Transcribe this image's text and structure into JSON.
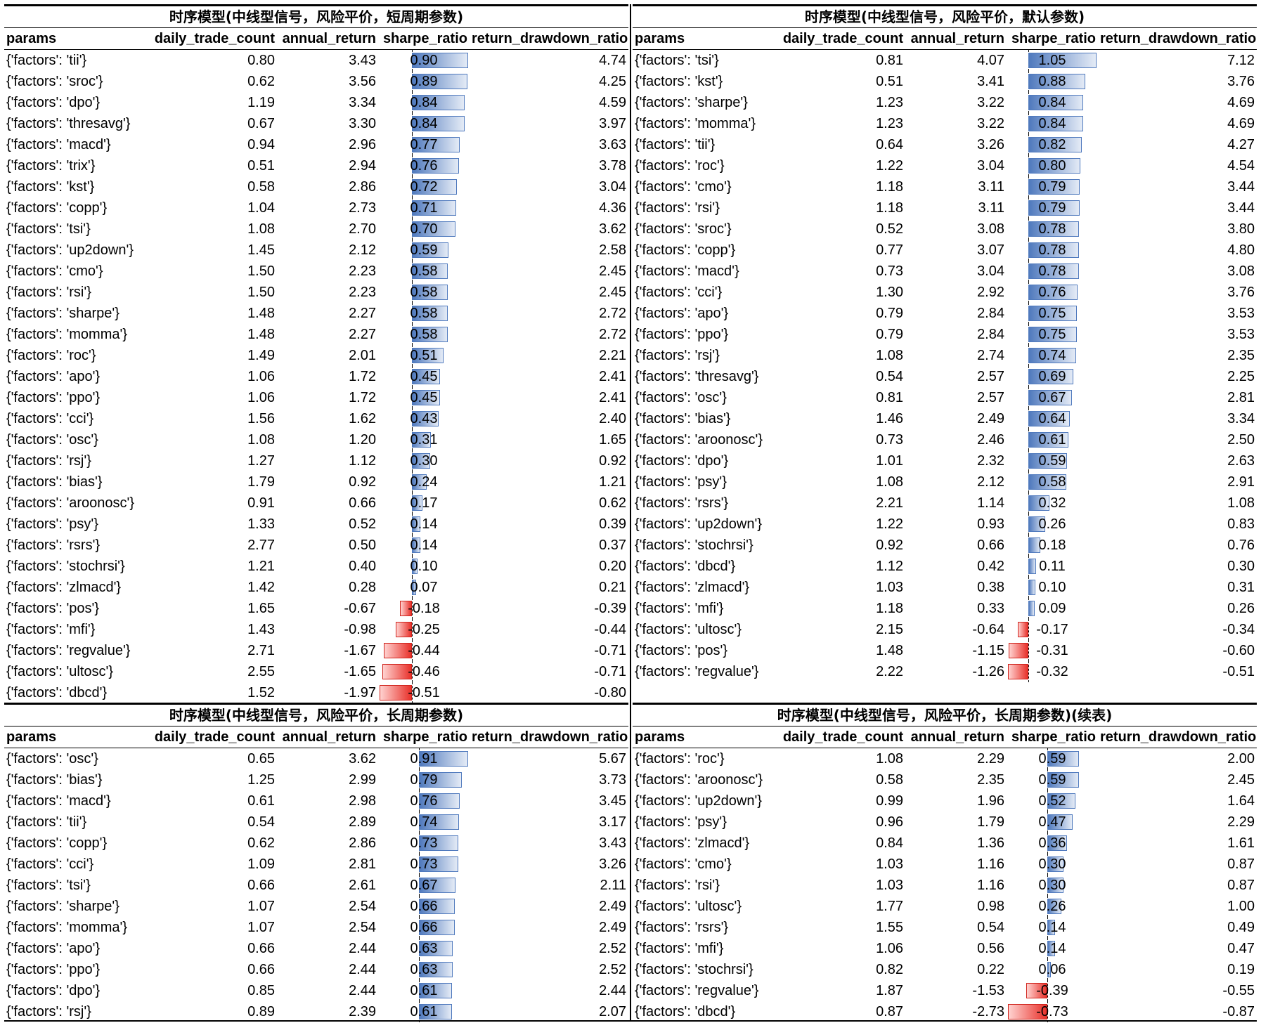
{
  "columns": [
    "params",
    "daily_trade_count",
    "annual_return",
    "sharpe_ratio",
    "return_drawdown_ratio"
  ],
  "chart_data": [
    {
      "type": "table",
      "title": "时序模型(中线型信号，风险平价，短周期参数)",
      "sharpe_range": [
        -0.51,
        0.9
      ],
      "rows": [
        [
          "{'factors': 'tii'}",
          "0.80",
          "3.43",
          "0.90",
          "4.74"
        ],
        [
          "{'factors': 'sroc'}",
          "0.62",
          "3.56",
          "0.89",
          "4.25"
        ],
        [
          "{'factors': 'dpo'}",
          "1.19",
          "3.34",
          "0.84",
          "4.59"
        ],
        [
          "{'factors': 'thresavg'}",
          "0.67",
          "3.30",
          "0.84",
          "3.97"
        ],
        [
          "{'factors': 'macd'}",
          "0.94",
          "2.96",
          "0.77",
          "3.63"
        ],
        [
          "{'factors': 'trix'}",
          "0.51",
          "2.94",
          "0.76",
          "3.78"
        ],
        [
          "{'factors': 'kst'}",
          "0.58",
          "2.86",
          "0.72",
          "3.04"
        ],
        [
          "{'factors': 'copp'}",
          "1.04",
          "2.73",
          "0.71",
          "4.36"
        ],
        [
          "{'factors': 'tsi'}",
          "1.08",
          "2.70",
          "0.70",
          "3.62"
        ],
        [
          "{'factors': 'up2down'}",
          "1.45",
          "2.12",
          "0.59",
          "2.58"
        ],
        [
          "{'factors': 'cmo'}",
          "1.50",
          "2.23",
          "0.58",
          "2.45"
        ],
        [
          "{'factors': 'rsi'}",
          "1.50",
          "2.23",
          "0.58",
          "2.45"
        ],
        [
          "{'factors': 'sharpe'}",
          "1.48",
          "2.27",
          "0.58",
          "2.72"
        ],
        [
          "{'factors': 'momma'}",
          "1.48",
          "2.27",
          "0.58",
          "2.72"
        ],
        [
          "{'factors': 'roc'}",
          "1.49",
          "2.01",
          "0.51",
          "2.21"
        ],
        [
          "{'factors': 'apo'}",
          "1.06",
          "1.72",
          "0.45",
          "2.41"
        ],
        [
          "{'factors': 'ppo'}",
          "1.06",
          "1.72",
          "0.45",
          "2.41"
        ],
        [
          "{'factors': 'cci'}",
          "1.56",
          "1.62",
          "0.43",
          "2.40"
        ],
        [
          "{'factors': 'osc'}",
          "1.08",
          "1.20",
          "0.31",
          "1.65"
        ],
        [
          "{'factors': 'rsj'}",
          "1.27",
          "1.12",
          "0.30",
          "0.92"
        ],
        [
          "{'factors': 'bias'}",
          "1.79",
          "0.92",
          "0.24",
          "1.21"
        ],
        [
          "{'factors': 'aroonosc'}",
          "0.91",
          "0.66",
          "0.17",
          "0.62"
        ],
        [
          "{'factors': 'psy'}",
          "1.33",
          "0.52",
          "0.14",
          "0.39"
        ],
        [
          "{'factors': 'rsrs'}",
          "2.77",
          "0.50",
          "0.14",
          "0.37"
        ],
        [
          "{'factors': 'stochrsi'}",
          "1.21",
          "0.40",
          "0.10",
          "0.20"
        ],
        [
          "{'factors': 'zlmacd'}",
          "1.42",
          "0.28",
          "0.07",
          "0.21"
        ],
        [
          "{'factors': 'pos'}",
          "1.65",
          "-0.67",
          "-0.18",
          "-0.39"
        ],
        [
          "{'factors': 'mfi'}",
          "1.43",
          "-0.98",
          "-0.25",
          "-0.44"
        ],
        [
          "{'factors': 'regvalue'}",
          "2.71",
          "-1.67",
          "-0.44",
          "-0.71"
        ],
        [
          "{'factors': 'ultosc'}",
          "2.55",
          "-1.65",
          "-0.46",
          "-0.71"
        ],
        [
          "{'factors': 'dbcd'}",
          "1.52",
          "-1.97",
          "-0.51",
          "-0.80"
        ]
      ]
    },
    {
      "type": "table",
      "title": "时序模型(中线型信号，风险平价，默认参数)",
      "sharpe_range": [
        -0.32,
        1.05
      ],
      "rows": [
        [
          "{'factors': 'tsi'}",
          "0.81",
          "4.07",
          "1.05",
          "7.12"
        ],
        [
          "{'factors': 'kst'}",
          "0.51",
          "3.41",
          "0.88",
          "3.76"
        ],
        [
          "{'factors': 'sharpe'}",
          "1.23",
          "3.22",
          "0.84",
          "4.69"
        ],
        [
          "{'factors': 'momma'}",
          "1.23",
          "3.22",
          "0.84",
          "4.69"
        ],
        [
          "{'factors': 'tii'}",
          "0.64",
          "3.26",
          "0.82",
          "4.27"
        ],
        [
          "{'factors': 'roc'}",
          "1.22",
          "3.04",
          "0.80",
          "4.54"
        ],
        [
          "{'factors': 'cmo'}",
          "1.18",
          "3.11",
          "0.79",
          "3.44"
        ],
        [
          "{'factors': 'rsi'}",
          "1.18",
          "3.11",
          "0.79",
          "3.44"
        ],
        [
          "{'factors': 'sroc'}",
          "0.52",
          "3.08",
          "0.78",
          "3.80"
        ],
        [
          "{'factors': 'copp'}",
          "0.77",
          "3.07",
          "0.78",
          "4.80"
        ],
        [
          "{'factors': 'macd'}",
          "0.73",
          "3.04",
          "0.78",
          "3.08"
        ],
        [
          "{'factors': 'cci'}",
          "1.30",
          "2.92",
          "0.76",
          "3.76"
        ],
        [
          "{'factors': 'apo'}",
          "0.79",
          "2.84",
          "0.75",
          "3.53"
        ],
        [
          "{'factors': 'ppo'}",
          "0.79",
          "2.84",
          "0.75",
          "3.53"
        ],
        [
          "{'factors': 'rsj'}",
          "1.08",
          "2.74",
          "0.74",
          "2.35"
        ],
        [
          "{'factors': 'thresavg'}",
          "0.54",
          "2.57",
          "0.69",
          "2.25"
        ],
        [
          "{'factors': 'osc'}",
          "0.81",
          "2.57",
          "0.67",
          "2.81"
        ],
        [
          "{'factors': 'bias'}",
          "1.46",
          "2.49",
          "0.64",
          "3.34"
        ],
        [
          "{'factors': 'aroonosc'}",
          "0.73",
          "2.46",
          "0.61",
          "2.50"
        ],
        [
          "{'factors': 'dpo'}",
          "1.01",
          "2.32",
          "0.59",
          "2.63"
        ],
        [
          "{'factors': 'psy'}",
          "1.08",
          "2.12",
          "0.58",
          "2.91"
        ],
        [
          "{'factors': 'rsrs'}",
          "2.21",
          "1.14",
          "0.32",
          "1.08"
        ],
        [
          "{'factors': 'up2down'}",
          "1.22",
          "0.93",
          "0.26",
          "0.83"
        ],
        [
          "{'factors': 'stochrsi'}",
          "0.92",
          "0.66",
          "0.18",
          "0.76"
        ],
        [
          "{'factors': 'dbcd'}",
          "1.12",
          "0.42",
          "0.11",
          "0.30"
        ],
        [
          "{'factors': 'zlmacd'}",
          "1.03",
          "0.38",
          "0.10",
          "0.31"
        ],
        [
          "{'factors': 'mfi'}",
          "1.18",
          "0.33",
          "0.09",
          "0.26"
        ],
        [
          "{'factors': 'ultosc'}",
          "2.15",
          "-0.64",
          "-0.17",
          "-0.34"
        ],
        [
          "{'factors': 'pos'}",
          "1.48",
          "-1.15",
          "-0.31",
          "-0.60"
        ],
        [
          "{'factors': 'regvalue'}",
          "2.22",
          "-1.26",
          "-0.32",
          "-0.51"
        ]
      ]
    },
    {
      "type": "table",
      "title": "时序模型(中线型信号，风险平价，长周期参数)",
      "sharpe_range": [
        -0.73,
        0.91
      ],
      "rows": [
        [
          "{'factors': 'osc'}",
          "0.65",
          "3.62",
          "0.91",
          "5.67"
        ],
        [
          "{'factors': 'bias'}",
          "1.25",
          "2.99",
          "0.79",
          "3.73"
        ],
        [
          "{'factors': 'macd'}",
          "0.61",
          "2.98",
          "0.76",
          "3.45"
        ],
        [
          "{'factors': 'tii'}",
          "0.54",
          "2.89",
          "0.74",
          "3.17"
        ],
        [
          "{'factors': 'copp'}",
          "0.62",
          "2.86",
          "0.73",
          "3.43"
        ],
        [
          "{'factors': 'cci'}",
          "1.09",
          "2.81",
          "0.73",
          "3.26"
        ],
        [
          "{'factors': 'tsi'}",
          "0.66",
          "2.61",
          "0.67",
          "2.11"
        ],
        [
          "{'factors': 'sharpe'}",
          "1.07",
          "2.54",
          "0.66",
          "2.49"
        ],
        [
          "{'factors': 'momma'}",
          "1.07",
          "2.54",
          "0.66",
          "2.49"
        ],
        [
          "{'factors': 'apo'}",
          "0.66",
          "2.44",
          "0.63",
          "2.52"
        ],
        [
          "{'factors': 'ppo'}",
          "0.66",
          "2.44",
          "0.63",
          "2.52"
        ],
        [
          "{'factors': 'dpo'}",
          "0.85",
          "2.44",
          "0.61",
          "2.44"
        ],
        [
          "{'factors': 'rsj'}",
          "0.89",
          "2.39",
          "0.61",
          "2.07"
        ]
      ]
    },
    {
      "type": "table",
      "title": "时序模型(中线型信号，风险平价，长周期参数)(续表)",
      "sharpe_range": [
        -0.73,
        0.91
      ],
      "rows": [
        [
          "{'factors': 'roc'}",
          "1.08",
          "2.29",
          "0.59",
          "2.00"
        ],
        [
          "{'factors': 'aroonosc'}",
          "0.58",
          "2.35",
          "0.59",
          "2.45"
        ],
        [
          "{'factors': 'up2down'}",
          "0.99",
          "1.96",
          "0.52",
          "1.64"
        ],
        [
          "{'factors': 'psy'}",
          "0.96",
          "1.79",
          "0.47",
          "2.29"
        ],
        [
          "{'factors': 'zlmacd'}",
          "0.84",
          "1.36",
          "0.36",
          "1.61"
        ],
        [
          "{'factors': 'cmo'}",
          "1.03",
          "1.16",
          "0.30",
          "0.87"
        ],
        [
          "{'factors': 'rsi'}",
          "1.03",
          "1.16",
          "0.30",
          "0.87"
        ],
        [
          "{'factors': 'ultosc'}",
          "1.77",
          "0.98",
          "0.26",
          "1.00"
        ],
        [
          "{'factors': 'rsrs'}",
          "1.55",
          "0.54",
          "0.14",
          "0.49"
        ],
        [
          "{'factors': 'mfi'}",
          "1.06",
          "0.56",
          "0.14",
          "0.47"
        ],
        [
          "{'factors': 'stochrsi'}",
          "0.82",
          "0.22",
          "0.06",
          "0.19"
        ],
        [
          "{'factors': 'regvalue'}",
          "1.87",
          "-1.53",
          "-0.39",
          "-0.55"
        ],
        [
          "{'factors': 'dbcd'}",
          "0.87",
          "-2.73",
          "-0.73",
          "-0.87"
        ]
      ]
    }
  ]
}
